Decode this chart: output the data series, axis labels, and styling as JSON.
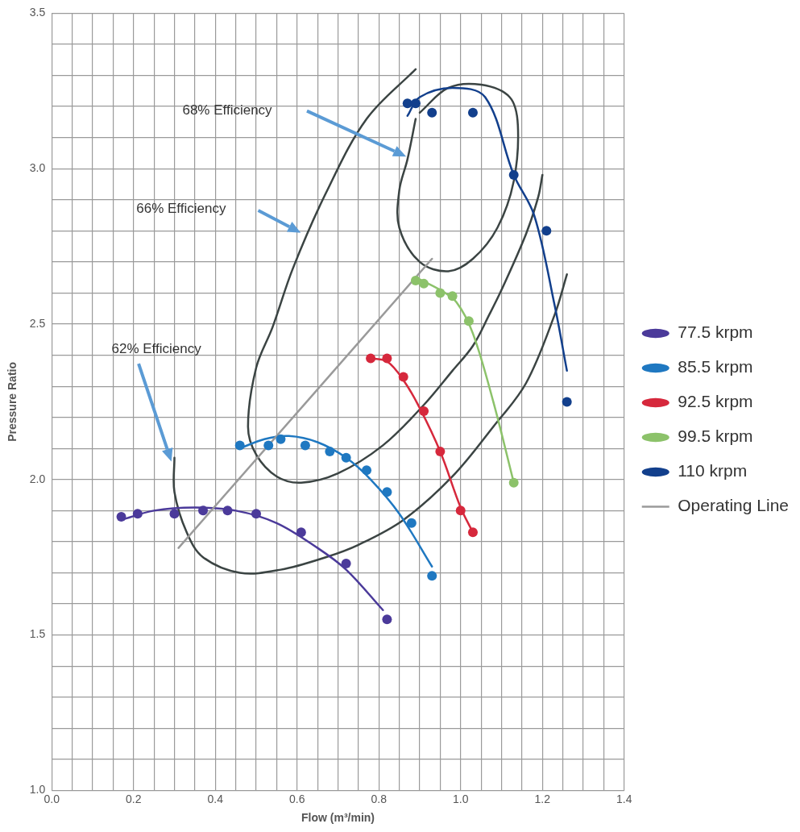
{
  "chart_data": {
    "type": "scatter",
    "xlabel": "Flow (m³/min)",
    "ylabel": "Pressure Ratio",
    "xlim": [
      0,
      1.4
    ],
    "xticks": [
      {
        "value": 0,
        "label": "0.0"
      },
      {
        "value": 0.05,
        "label": null
      },
      {
        "value": 0.1,
        "label": null
      },
      {
        "value": 0.15,
        "label": null
      },
      0.2,
      {
        "value": 0.25,
        "label": null
      },
      {
        "value": 0.3,
        "label": null
      },
      {
        "value": 0.35,
        "label": null
      },
      0.4,
      {
        "value": 0.45,
        "label": null
      },
      {
        "value": 0.5,
        "label": null
      },
      {
        "value": 0.55,
        "label": null
      },
      0.6,
      {
        "value": 0.65,
        "label": null
      },
      {
        "value": 0.7,
        "label": null
      },
      {
        "value": 0.75,
        "label": null
      },
      0.8,
      {
        "value": 0.85,
        "label": null
      },
      {
        "value": 0.9,
        "label": null
      },
      {
        "value": 0.95,
        "label": null
      },
      {
        "value": 1,
        "label": "1.0"
      },
      {
        "value": 1.05,
        "label": null
      },
      {
        "value": 1.1,
        "label": null
      },
      {
        "value": 1.15,
        "label": null
      },
      1.2,
      {
        "value": 1.25,
        "label": null
      },
      {
        "value": 1.3,
        "label": null
      },
      {
        "value": 1.35,
        "label": null
      },
      1.4
    ],
    "ylim": [
      1,
      3.5
    ],
    "yticks": [
      {
        "value": 1,
        "label": "1.0"
      },
      {
        "value": 1.1,
        "label": null
      },
      {
        "value": 1.2,
        "label": null
      },
      {
        "value": 1.3,
        "label": null
      },
      {
        "value": 1.4,
        "label": null
      },
      1.5,
      {
        "value": 1.6,
        "label": null
      },
      {
        "value": 1.7,
        "label": null
      },
      {
        "value": 1.8,
        "label": null
      },
      {
        "value": 1.9,
        "label": null
      },
      {
        "value": 2,
        "label": "2.0"
      },
      {
        "value": 2.1,
        "label": null
      },
      {
        "value": 2.2,
        "label": null
      },
      {
        "value": 2.3,
        "label": null
      },
      {
        "value": 2.4,
        "label": null
      },
      2.5,
      {
        "value": 2.6,
        "label": null
      },
      {
        "value": 2.7,
        "label": null
      },
      {
        "value": 2.8,
        "label": null
      },
      {
        "value": 2.9,
        "label": null
      },
      {
        "value": 3,
        "label": "3.0"
      },
      {
        "value": 3.1,
        "label": null
      },
      {
        "value": 3.2,
        "label": null
      },
      {
        "value": 3.3,
        "label": null
      },
      {
        "value": 3.4,
        "label": null
      },
      3.5
    ],
    "grid": true,
    "legend": "right",
    "line_style": "solid",
    "series": [
      {
        "name": "77.5 krpm",
        "type": "scatter",
        "marker": "circle",
        "color": "#4b3a9a",
        "x": [
          0.17,
          0.21,
          0.3,
          0.37,
          0.43,
          0.5,
          0.61,
          0.72,
          0.82
        ],
        "values": [
          1.88,
          1.89,
          1.89,
          1.9,
          1.9,
          1.89,
          1.83,
          1.73,
          1.55
        ]
      },
      {
        "name": "85.5 krpm",
        "type": "scatter",
        "marker": "circle",
        "color": "#1f78c1",
        "x": [
          0.46,
          0.53,
          0.56,
          0.62,
          0.68,
          0.72,
          0.77,
          0.82,
          0.88,
          0.93
        ],
        "values": [
          2.11,
          2.11,
          2.13,
          2.11,
          2.09,
          2.07,
          2.03,
          1.96,
          1.86,
          1.69
        ]
      },
      {
        "name": "92.5 krpm",
        "type": "scatter",
        "marker": "circle",
        "color": "#d6283c",
        "x": [
          0.78,
          0.82,
          0.86,
          0.91,
          0.95,
          1.0,
          1.03
        ],
        "values": [
          2.39,
          2.39,
          2.33,
          2.22,
          2.09,
          1.9,
          1.83
        ]
      },
      {
        "name": "99.5 krpm",
        "type": "scatter",
        "marker": "circle",
        "color": "#8cc26a",
        "x": [
          0.89,
          0.91,
          0.95,
          0.98,
          1.02,
          1.13
        ],
        "values": [
          2.64,
          2.63,
          2.6,
          2.59,
          2.51,
          1.99
        ]
      },
      {
        "name": "110 krpm",
        "type": "scatter",
        "marker": "circle",
        "color": "#123f8c",
        "x": [
          0.87,
          0.89,
          0.93,
          1.03,
          1.13,
          1.21,
          1.26
        ],
        "values": [
          3.21,
          3.21,
          3.18,
          3.18,
          2.98,
          2.8,
          2.25
        ]
      },
      {
        "name": "Operating Line",
        "type": "line",
        "marker": "none",
        "color": "#9a9a9a",
        "x": [
          0.31,
          0.93
        ],
        "values": [
          1.78,
          2.71
        ]
      },
      {
        "type": "line",
        "marker": "none",
        "color": "#4b3a9a",
        "x": [
          0.17,
          0.25,
          0.35,
          0.45,
          0.55,
          0.65,
          0.72,
          0.81
        ],
        "values": [
          1.87,
          1.9,
          1.91,
          1.9,
          1.86,
          1.78,
          1.71,
          1.58
        ]
      },
      {
        "type": "line",
        "marker": "none",
        "color": "#1f78c1",
        "x": [
          0.46,
          0.52,
          0.58,
          0.65,
          0.72,
          0.78,
          0.85,
          0.93
        ],
        "values": [
          2.1,
          2.13,
          2.14,
          2.12,
          2.07,
          2.0,
          1.89,
          1.72
        ]
      },
      {
        "type": "line",
        "marker": "none",
        "color": "#d6283c",
        "x": [
          0.78,
          0.82,
          0.86,
          0.9,
          0.95,
          1.0,
          1.03
        ],
        "values": [
          2.39,
          2.38,
          2.32,
          2.23,
          2.09,
          1.91,
          1.83
        ]
      },
      {
        "type": "line",
        "marker": "none",
        "color": "#8cc26a",
        "x": [
          0.89,
          0.95,
          0.99,
          1.03,
          1.08,
          1.13
        ],
        "values": [
          2.65,
          2.61,
          2.57,
          2.47,
          2.25,
          1.99
        ]
      },
      {
        "type": "line",
        "marker": "none",
        "color": "#123f8c",
        "x": [
          0.87,
          0.9,
          0.98,
          1.06,
          1.13,
          1.18,
          1.23,
          1.26
        ],
        "values": [
          3.17,
          3.23,
          3.26,
          3.23,
          2.98,
          2.85,
          2.56,
          2.35
        ]
      },
      {
        "type": "line",
        "marker": "none",
        "color": "#3b4443",
        "x": [
          0.9,
          0.97,
          1.05,
          1.12,
          1.14,
          1.13,
          1.09,
          1.03,
          0.97,
          0.9,
          0.85,
          0.85,
          0.87,
          0.89
        ],
        "values": [
          3.18,
          3.26,
          3.27,
          3.23,
          3.14,
          2.96,
          2.81,
          2.71,
          2.67,
          2.7,
          2.81,
          2.93,
          3.03,
          3.16
        ]
      },
      {
        "type": "line",
        "marker": "none",
        "color": "#3b4443",
        "x": [
          0.89,
          0.77,
          0.67,
          0.59,
          0.54,
          0.5,
          0.48,
          0.5,
          0.55,
          0.61,
          0.7,
          0.81,
          0.91,
          0.98,
          1.03,
          1.07,
          1.1,
          1.16,
          1.19,
          1.2
        ],
        "values": [
          3.32,
          3.16,
          2.92,
          2.68,
          2.49,
          2.36,
          2.17,
          2.08,
          2.01,
          1.99,
          2.02,
          2.11,
          2.24,
          2.35,
          2.43,
          2.53,
          2.61,
          2.79,
          2.91,
          2.98
        ]
      },
      {
        "type": "line",
        "marker": "none",
        "color": "#3b4443",
        "x": [
          0.3,
          0.3,
          0.33,
          0.37,
          0.46,
          0.56,
          0.67,
          0.75,
          0.86,
          0.98,
          1.08,
          1.16,
          1.23,
          1.26
        ],
        "values": [
          2.07,
          1.96,
          1.83,
          1.75,
          1.7,
          1.71,
          1.75,
          1.79,
          1.87,
          2.01,
          2.17,
          2.31,
          2.53,
          2.66
        ]
      }
    ],
    "annotations": [
      "68% Efficiency",
      "66% Efficiency",
      "62% Efficiency"
    ]
  }
}
